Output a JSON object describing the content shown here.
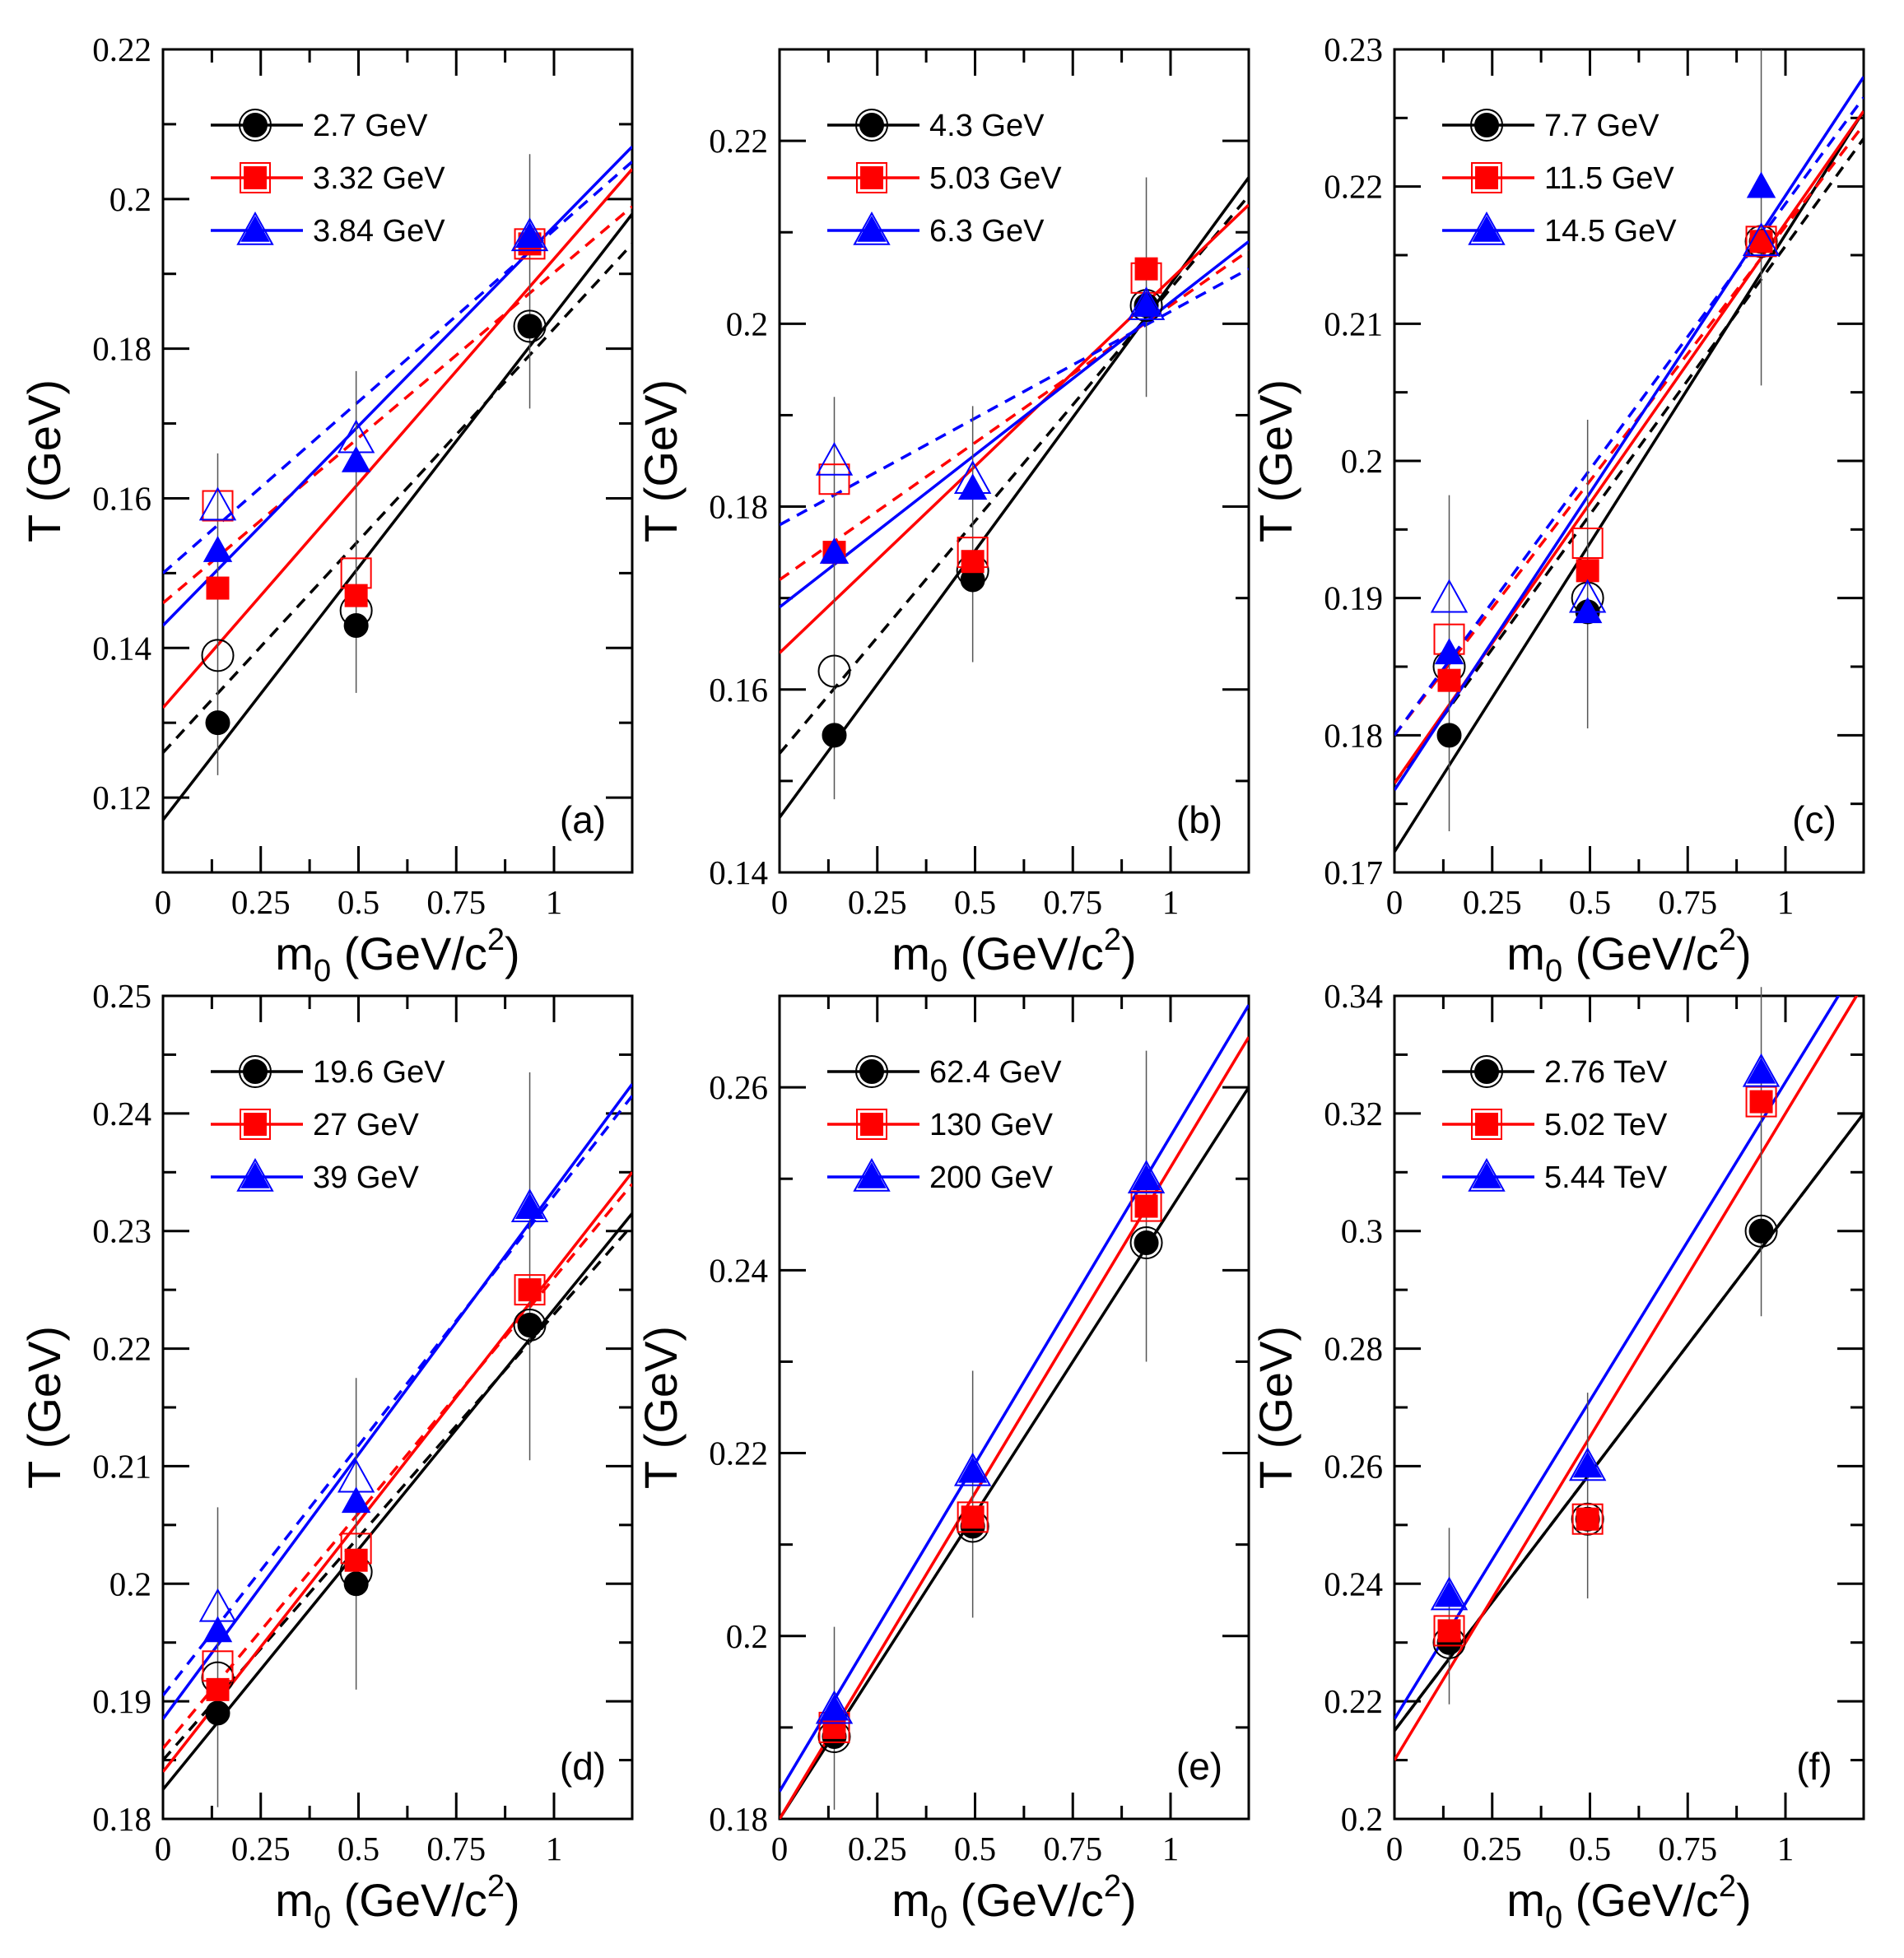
{
  "figure": {
    "colors": {
      "black": "#000000",
      "red": "#ff0000",
      "blue": "#0000ff"
    },
    "series_colors": [
      "#000000",
      "#ff0000",
      "#0000ff"
    ],
    "marker_shapes": [
      "circle",
      "square",
      "triangle"
    ],
    "notes": "filled markers = one data set, open markers = second data set; solid lines fit filled markers, dashed lines fit open markers"
  },
  "chart_data": [
    {
      "type": "scatter",
      "panel_label": "(a)",
      "xlabel": "m0 (GeV/c2)",
      "xlabel_main": "m",
      "xlabel_sub": "0",
      "xlabel_rest": " (GeV/c",
      "xlabel_sup": "2",
      "xlabel_end": ")",
      "ylabel": "T (GeV)",
      "xlim": [
        0,
        1.2
      ],
      "ylim": [
        0.11,
        0.22
      ],
      "xticks": [
        0,
        0.25,
        0.5,
        0.75,
        1
      ],
      "xtick_labels": [
        "0",
        "0.25",
        "0.5",
        "0.75",
        "1"
      ],
      "yticks": [
        0.12,
        0.14,
        0.16,
        0.18,
        0.2,
        0.22
      ],
      "ytick_labels": [
        "0.12",
        "0.14",
        "0.16",
        "0.18",
        "0.2",
        "0.22"
      ],
      "x": [
        0.14,
        0.494,
        0.938
      ],
      "series": [
        {
          "name": "2.7 GeV",
          "filled": [
            0.13,
            0.143,
            0.183
          ],
          "open": [
            0.139,
            0.145,
            0.183
          ],
          "fit_solid": [
            0.117,
            0.198
          ],
          "fit_dashed": [
            0.126,
            0.194
          ]
        },
        {
          "name": "3.32 GeV",
          "filled": [
            0.148,
            0.147,
            0.194
          ],
          "open": [
            0.159,
            0.15,
            0.194
          ],
          "fit_solid": [
            0.132,
            0.204
          ],
          "fit_dashed": [
            0.146,
            0.199
          ]
        },
        {
          "name": "3.84 GeV",
          "filled": [
            0.153,
            0.165,
            0.195
          ],
          "open": [
            0.159,
            0.168,
            0.195
          ],
          "fit_solid": [
            0.143,
            0.207
          ],
          "fit_dashed": [
            0.15,
            0.205
          ]
        }
      ],
      "errorbars": [
        [
          0.123,
          0.166
        ],
        [
          0.134,
          0.177
        ],
        [
          0.172,
          0.206
        ]
      ],
      "fit_x": [
        0,
        1.2
      ]
    },
    {
      "type": "scatter",
      "panel_label": "(b)",
      "xlabel": "m0 (GeV/c2)",
      "xlabel_main": "m",
      "xlabel_sub": "0",
      "xlabel_rest": " (GeV/c",
      "xlabel_sup": "2",
      "xlabel_end": ")",
      "ylabel": "T (GeV)",
      "xlim": [
        0,
        1.2
      ],
      "ylim": [
        0.14,
        0.23
      ],
      "xticks": [
        0,
        0.25,
        0.5,
        0.75,
        1
      ],
      "xtick_labels": [
        "0",
        "0.25",
        "0.5",
        "0.75",
        "1"
      ],
      "yticks": [
        0.14,
        0.16,
        0.18,
        0.2,
        0.22
      ],
      "ytick_labels": [
        "0.14",
        "0.16",
        "0.18",
        "0.2",
        "0.22"
      ],
      "x": [
        0.14,
        0.494,
        0.938
      ],
      "series": [
        {
          "name": "4.3 GeV",
          "filled": [
            0.155,
            0.172,
            0.202
          ],
          "open": [
            0.162,
            0.173,
            0.202
          ],
          "fit_solid": [
            0.146,
            0.216
          ],
          "fit_dashed": [
            0.153,
            0.214
          ]
        },
        {
          "name": "5.03 GeV",
          "filled": [
            0.175,
            0.174,
            0.206
          ],
          "open": [
            0.183,
            0.175,
            0.205
          ],
          "fit_solid": [
            0.164,
            0.213
          ],
          "fit_dashed": [
            0.172,
            0.208
          ]
        },
        {
          "name": "6.3 GeV",
          "filled": [
            0.175,
            0.182,
            0.202
          ],
          "open": [
            0.185,
            0.183,
            0.202
          ],
          "fit_solid": [
            0.169,
            0.209
          ],
          "fit_dashed": [
            0.178,
            0.206
          ]
        }
      ],
      "errorbars": [
        [
          0.148,
          0.192
        ],
        [
          0.163,
          0.191
        ],
        [
          0.192,
          0.216
        ]
      ],
      "fit_x": [
        0,
        1.2
      ]
    },
    {
      "type": "scatter",
      "panel_label": "(c)",
      "xlabel": "m0 (GeV/c2)",
      "xlabel_main": "m",
      "xlabel_sub": "0",
      "xlabel_rest": " (GeV/c",
      "xlabel_sup": "2",
      "xlabel_end": ")",
      "ylabel": "T (GeV)",
      "xlim": [
        0,
        1.2
      ],
      "ylim": [
        0.17,
        0.23
      ],
      "xticks": [
        0,
        0.25,
        0.5,
        0.75,
        1
      ],
      "xtick_labels": [
        "0",
        "0.25",
        "0.5",
        "0.75",
        "1"
      ],
      "yticks": [
        0.17,
        0.18,
        0.19,
        0.2,
        0.21,
        0.22,
        0.23
      ],
      "ytick_labels": [
        "0.17",
        "0.18",
        "0.19",
        "0.2",
        "0.21",
        "0.22",
        "0.23"
      ],
      "x": [
        0.14,
        0.494,
        0.938
      ],
      "series": [
        {
          "name": "7.7 GeV",
          "filled": [
            0.18,
            0.189,
            0.216
          ],
          "open": [
            0.185,
            0.19,
            0.216
          ],
          "fit_solid": [
            0.1715,
            0.2255
          ],
          "fit_dashed": [
            0.1765,
            0.2235
          ]
        },
        {
          "name": "11.5 GeV",
          "filled": [
            0.184,
            0.192,
            0.216
          ],
          "open": [
            0.187,
            0.194,
            0.216
          ],
          "fit_solid": [
            0.1765,
            0.2255
          ],
          "fit_dashed": [
            0.18,
            0.2245
          ]
        },
        {
          "name": "14.5 GeV",
          "filled": [
            0.186,
            0.189,
            0.22
          ],
          "open": [
            0.19,
            0.19,
            0.216
          ],
          "fit_solid": [
            0.176,
            0.228
          ],
          "fit_dashed": [
            0.18,
            0.2265
          ]
        }
      ],
      "errorbars": [
        [
          0.173,
          0.1975
        ],
        [
          0.1805,
          0.203
        ],
        [
          0.2055,
          0.23
        ]
      ],
      "fit_x": [
        0,
        1.2
      ]
    },
    {
      "type": "scatter",
      "panel_label": "(d)",
      "xlabel": "m0 (GeV/c2)",
      "xlabel_main": "m",
      "xlabel_sub": "0",
      "xlabel_rest": " (GeV/c",
      "xlabel_sup": "2",
      "xlabel_end": ")",
      "ylabel": "T (GeV)",
      "xlim": [
        0,
        1.2
      ],
      "ylim": [
        0.18,
        0.25
      ],
      "xticks": [
        0,
        0.25,
        0.5,
        0.75,
        1
      ],
      "xtick_labels": [
        "0",
        "0.25",
        "0.5",
        "0.75",
        "1"
      ],
      "yticks": [
        0.18,
        0.19,
        0.2,
        0.21,
        0.22,
        0.23,
        0.24,
        0.25
      ],
      "ytick_labels": [
        "0.18",
        "0.19",
        "0.2",
        "0.21",
        "0.22",
        "0.23",
        "0.24",
        "0.25"
      ],
      "x": [
        0.14,
        0.494,
        0.938
      ],
      "series": [
        {
          "name": "19.6 GeV",
          "filled": [
            0.189,
            0.2,
            0.222
          ],
          "open": [
            0.192,
            0.201,
            0.222
          ],
          "fit_solid": [
            0.1825,
            0.2315
          ],
          "fit_dashed": [
            0.185,
            0.2305
          ]
        },
        {
          "name": "27 GeV",
          "filled": [
            0.191,
            0.202,
            0.225
          ],
          "open": [
            0.193,
            0.203,
            0.225
          ],
          "fit_solid": [
            0.184,
            0.235
          ],
          "fit_dashed": [
            0.186,
            0.234
          ]
        },
        {
          "name": "39 GeV",
          "filled": [
            0.196,
            0.207,
            0.232
          ],
          "open": [
            0.198,
            0.209,
            0.232
          ],
          "fit_solid": [
            0.1885,
            0.2425
          ],
          "fit_dashed": [
            0.1905,
            0.2415
          ]
        }
      ],
      "errorbars": [
        [
          0.181,
          0.2065
        ],
        [
          0.191,
          0.2175
        ],
        [
          0.2105,
          0.2435
        ]
      ],
      "fit_x": [
        0,
        1.2
      ]
    },
    {
      "type": "scatter",
      "panel_label": "(e)",
      "xlabel": "m0 (GeV/c2)",
      "xlabel_main": "m",
      "xlabel_sub": "0",
      "xlabel_rest": " (GeV/c",
      "xlabel_sup": "2",
      "xlabel_end": ")",
      "ylabel": "T (GeV)",
      "xlim": [
        0,
        1.2
      ],
      "ylim": [
        0.18,
        0.27
      ],
      "xticks": [
        0,
        0.25,
        0.5,
        0.75,
        1
      ],
      "xtick_labels": [
        "0",
        "0.25",
        "0.5",
        "0.75",
        "1"
      ],
      "yticks": [
        0.18,
        0.2,
        0.22,
        0.24,
        0.26
      ],
      "ytick_labels": [
        "0.18",
        "0.2",
        "0.22",
        "0.24",
        "0.26"
      ],
      "x": [
        0.14,
        0.494,
        0.938
      ],
      "series": [
        {
          "name": "62.4 GeV",
          "filled": [
            0.189,
            0.212,
            0.243
          ],
          "open": [
            0.189,
            0.212,
            0.243
          ],
          "fit_solid": [
            0.18,
            0.26
          ],
          "fit_dashed": null
        },
        {
          "name": "130 GeV",
          "filled": [
            0.19,
            0.213,
            0.247
          ],
          "open": [
            0.19,
            0.213,
            0.247
          ],
          "fit_solid": [
            0.18,
            0.2655
          ],
          "fit_dashed": null
        },
        {
          "name": "200 GeV",
          "filled": [
            0.192,
            0.218,
            0.25
          ],
          "open": [
            0.192,
            0.218,
            0.25
          ],
          "fit_solid": [
            0.183,
            0.269
          ],
          "fit_dashed": null
        }
      ],
      "errorbars": [
        [
          0.181,
          0.201
        ],
        [
          0.202,
          0.229
        ],
        [
          0.23,
          0.264
        ]
      ],
      "fit_x": [
        0,
        1.2
      ]
    },
    {
      "type": "scatter",
      "panel_label": "(f)",
      "xlabel": "m0 (GeV/c2)",
      "xlabel_main": "m",
      "xlabel_sub": "0",
      "xlabel_rest": " (GeV/c",
      "xlabel_sup": "2",
      "xlabel_end": ")",
      "ylabel": "T (GeV)",
      "xlim": [
        0,
        1.2
      ],
      "ylim": [
        0.2,
        0.34
      ],
      "xticks": [
        0,
        0.25,
        0.5,
        0.75,
        1
      ],
      "xtick_labels": [
        "0",
        "0.25",
        "0.5",
        "0.75",
        "1"
      ],
      "yticks": [
        0.2,
        0.22,
        0.24,
        0.26,
        0.28,
        0.3,
        0.32,
        0.34
      ],
      "ytick_labels": [
        "0.2",
        "0.22",
        "0.24",
        "0.26",
        "0.28",
        "0.3",
        "0.32",
        "0.34"
      ],
      "x": [
        0.14,
        0.494,
        0.938
      ],
      "series": [
        {
          "name": "2.76 TeV",
          "filled": [
            0.23,
            0.251,
            0.3
          ],
          "open": [
            0.23,
            0.251,
            0.3
          ],
          "fit_solid": [
            0.215,
            0.32
          ],
          "fit_dashed": [
            0.215,
            0.32
          ]
        },
        {
          "name": "5.02 TeV",
          "filled": [
            0.232,
            0.251,
            0.322
          ],
          "open": [
            0.232,
            0.251,
            0.322
          ],
          "fit_solid": [
            0.21,
            0.342
          ],
          "fit_dashed": null
        },
        {
          "name": "5.44 TeV",
          "filled": [
            0.238,
            0.26,
            0.327
          ],
          "open": [
            0.238,
            0.26,
            0.327
          ],
          "fit_solid": [
            0.217,
            0.347
          ],
          "fit_dashed": null
        }
      ],
      "errorbars": [
        [
          0.2195,
          0.2495
        ],
        [
          0.2375,
          0.2725
        ],
        [
          0.2855,
          0.3415
        ]
      ],
      "fit_x": [
        0,
        1.2
      ]
    }
  ]
}
